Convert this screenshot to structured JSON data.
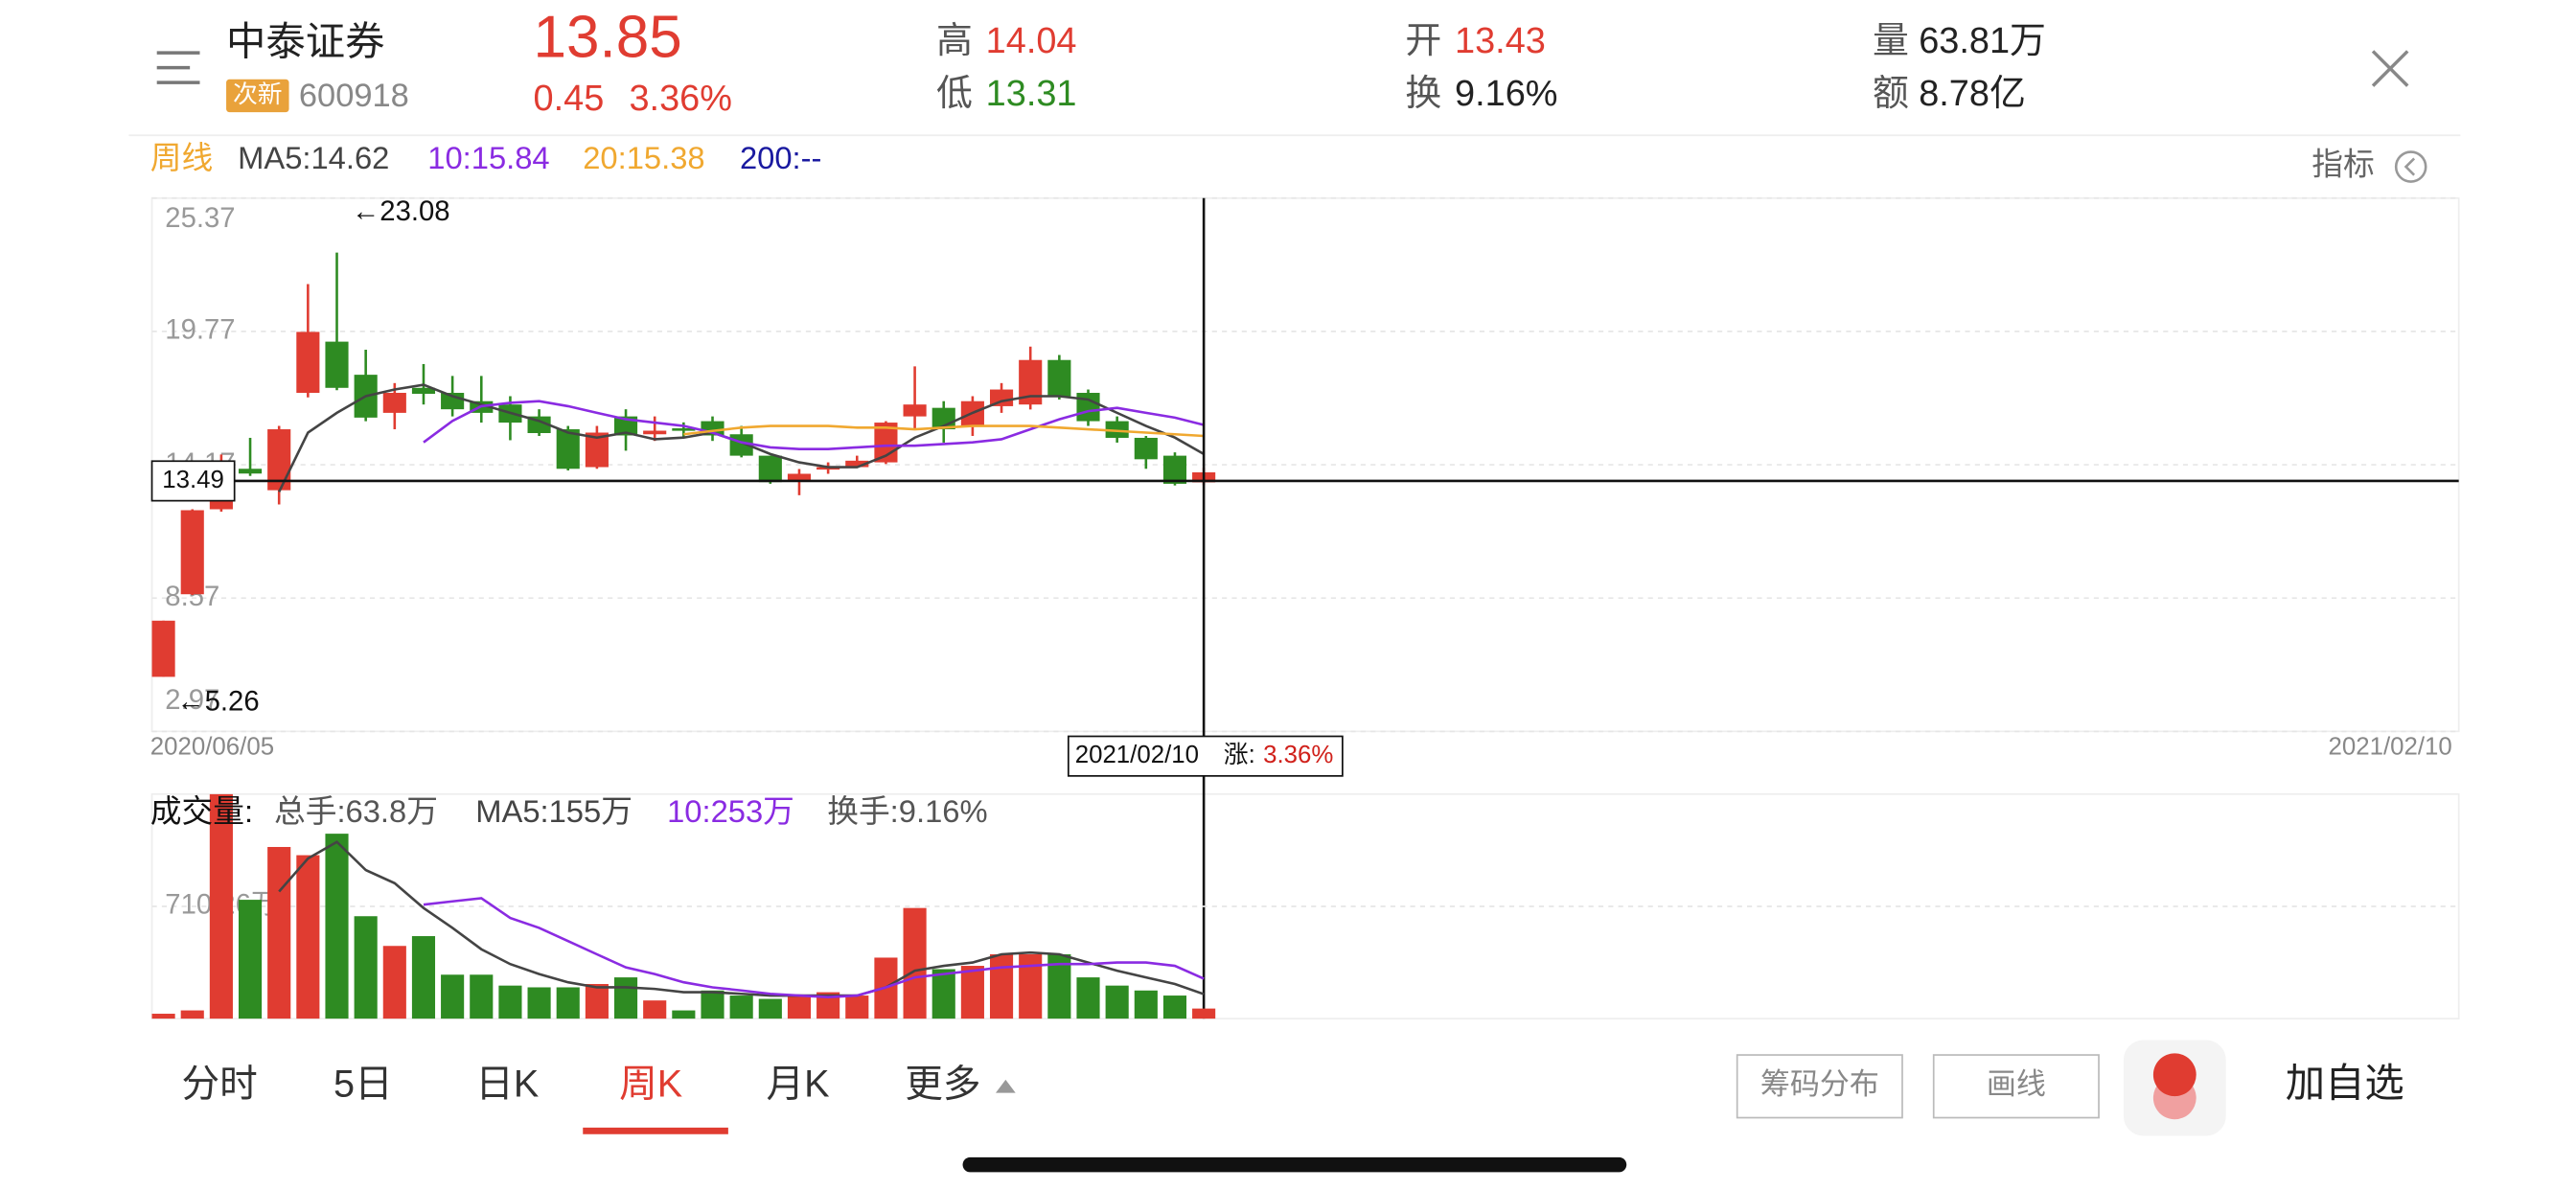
{
  "header": {
    "name": "中泰证券",
    "badge": "次新",
    "code": "600918",
    "price": "13.85",
    "change": "0.45",
    "change_pct": "3.36%",
    "high_label": "高",
    "high": "14.04",
    "low_label": "低",
    "low": "13.31",
    "open_label": "开",
    "open": "13.43",
    "turnover_label": "换",
    "turnover": "9.16%",
    "volume_label": "量",
    "volume": "63.81万",
    "amount_label": "额",
    "amount": "8.78亿"
  },
  "chart_data": [
    {
      "type": "candlestick",
      "period": "周线",
      "indicator_button": "指标",
      "categories": [
        "2020/06/05",
        null,
        null,
        null,
        null,
        null,
        null,
        null,
        null,
        null,
        null,
        null,
        null,
        null,
        null,
        null,
        null,
        null,
        null,
        null,
        null,
        null,
        null,
        null,
        null,
        null,
        null,
        null,
        null,
        null,
        null,
        null,
        null,
        null,
        null,
        null,
        "2021/02/10"
      ],
      "open": [
        5.26,
        8.73,
        12.3,
        14.0,
        13.1,
        17.19,
        19.34,
        17.95,
        16.35,
        17.4,
        17.19,
        16.84,
        16.7,
        16.2,
        15.66,
        14.07,
        16.2,
        15.45,
        15.7,
        16.0,
        15.45,
        14.55,
        13.51,
        14.0,
        14.07,
        14.27,
        16.2,
        16.56,
        15.8,
        16.63,
        16.7,
        18.57,
        17.19,
        16.0,
        15.3,
        14.55,
        13.43
      ],
      "high": [
        7.62,
        12.3,
        14.6,
        15.3,
        15.8,
        21.76,
        23.08,
        19.0,
        17.6,
        18.4,
        17.9,
        17.9,
        17.05,
        16.5,
        15.8,
        15.8,
        16.5,
        16.2,
        15.95,
        16.2,
        15.8,
        14.55,
        13.99,
        14.27,
        14.55,
        16.0,
        18.3,
        16.84,
        17.05,
        17.6,
        19.13,
        18.78,
        17.33,
        16.2,
        15.38,
        14.69,
        14.04
      ],
      "low": [
        5.26,
        8.7,
        12.2,
        13.7,
        12.5,
        17.0,
        17.3,
        16.0,
        15.66,
        16.7,
        16.2,
        15.94,
        15.2,
        15.38,
        13.93,
        14.0,
        14.76,
        15.17,
        15.31,
        15.17,
        14.48,
        13.37,
        12.89,
        13.79,
        14.13,
        14.2,
        15.66,
        15.1,
        15.38,
        16.35,
        16.49,
        16.91,
        15.8,
        15.1,
        14.0,
        13.3,
        13.31
      ],
      "close": [
        7.62,
        12.26,
        14.2,
        13.8,
        15.66,
        19.75,
        17.4,
        16.15,
        17.19,
        17.15,
        16.5,
        16.35,
        15.94,
        15.5,
        14.0,
        15.52,
        15.4,
        15.6,
        15.6,
        15.4,
        14.55,
        13.44,
        13.79,
        14.07,
        14.34,
        15.94,
        16.7,
        15.66,
        16.84,
        17.33,
        18.57,
        17.05,
        16.0,
        15.3,
        14.4,
        13.37,
        13.85
      ],
      "up_color": "#e03c31",
      "down_color": "#2e8b22",
      "ylim": [
        2.97,
        25.37
      ],
      "yticks": [
        25.37,
        19.77,
        14.17,
        8.57,
        2.97
      ],
      "grid": true,
      "series": [
        {
          "name": "MA5:14.62",
          "color": "#444444",
          "values": [
            null,
            null,
            null,
            null,
            13.03,
            15.52,
            16.35,
            17.05,
            17.33,
            17.53,
            17.05,
            16.7,
            16.35,
            16.01,
            15.52,
            15.31,
            15.52,
            15.24,
            15.31,
            15.52,
            15.11,
            14.62,
            14.27,
            14.07,
            14.07,
            14.55,
            15.31,
            15.8,
            16.35,
            16.84,
            17.05,
            17.05,
            16.91,
            16.35,
            15.8,
            15.31,
            14.62
          ]
        },
        {
          "name": "10:15.84",
          "color": "#8a2be2",
          "values": [
            null,
            null,
            null,
            null,
            null,
            null,
            null,
            null,
            null,
            15.11,
            16.01,
            16.63,
            16.77,
            16.84,
            16.63,
            16.35,
            16.08,
            15.94,
            15.8,
            15.52,
            15.11,
            14.9,
            14.83,
            14.83,
            14.9,
            14.97,
            14.97,
            15.04,
            15.11,
            15.24,
            15.66,
            16.08,
            16.42,
            16.56,
            16.35,
            16.15,
            15.84
          ]
        },
        {
          "name": "20:15.38",
          "color": "#f0a830",
          "values": [
            null,
            null,
            null,
            null,
            null,
            null,
            null,
            null,
            null,
            null,
            null,
            null,
            null,
            null,
            null,
            null,
            null,
            null,
            15.45,
            15.59,
            15.73,
            15.8,
            15.8,
            15.8,
            15.73,
            15.73,
            15.66,
            15.73,
            15.8,
            15.8,
            15.8,
            15.73,
            15.66,
            15.59,
            15.52,
            15.45,
            15.38
          ]
        },
        {
          "name": "200:--",
          "color": "#1a1aa0",
          "values": [
            null,
            null,
            null,
            null,
            null,
            null,
            null,
            null,
            null,
            null,
            null,
            null,
            null,
            null,
            null,
            null,
            null,
            null,
            null,
            null,
            null,
            null,
            null,
            null,
            null,
            null,
            null,
            null,
            null,
            null,
            null,
            null,
            null,
            null,
            null,
            null,
            null
          ]
        }
      ],
      "annotations": [
        "←23.08",
        "←5.26"
      ],
      "crosshair": {
        "value": 13.49,
        "change_label": "涨:",
        "change": "3.36%"
      }
    },
    {
      "type": "bar",
      "title": "成交量:",
      "ylim": [
        0,
        1420.52
      ],
      "yticks": [
        {
          "value": 710.26,
          "label": "710.26万"
        }
      ],
      "grid": true,
      "series": [
        {
          "name": "总手:63.8万",
          "values": [
            31,
            52,
            1420,
            752,
            1086,
            1034,
            1170,
            648,
            460,
            522,
            278,
            278,
            209,
            198,
            198,
            219,
            261,
            115,
            52,
            178,
            146,
            125,
            146,
            167,
            146,
            386,
            700,
            313,
            334,
            407,
            407,
            407,
            261,
            209,
            178,
            146,
            63.8
          ]
        },
        {
          "name": "MA5:155万",
          "color": "#444444",
          "values": [
            null,
            null,
            null,
            null,
            804,
            1013,
            1118,
            940,
            857,
            700,
            574,
            439,
            345,
            282,
            230,
            198,
            198,
            188,
            167,
            167,
            157,
            146,
            146,
            146,
            146,
            198,
            303,
            334,
            355,
            407,
            418,
            407,
            355,
            303,
            261,
            219,
            155
          ]
        },
        {
          "name": "10:253万",
          "color": "#8a2be2",
          "values": [
            null,
            null,
            null,
            null,
            null,
            null,
            null,
            null,
            null,
            721,
            742,
            762,
            637,
            574,
            491,
            407,
            324,
            282,
            230,
            198,
            178,
            157,
            146,
            136,
            146,
            198,
            261,
            282,
            303,
            324,
            334,
            345,
            345,
            355,
            355,
            334,
            253
          ]
        }
      ],
      "turnover": "换手:9.16%"
    }
  ],
  "ui": {
    "tabs": [
      "分时",
      "5日",
      "日K",
      "周K",
      "月K",
      "更多"
    ],
    "buttons": [
      "筹码分布",
      "画线"
    ],
    "add_watchlist": "加自选"
  }
}
